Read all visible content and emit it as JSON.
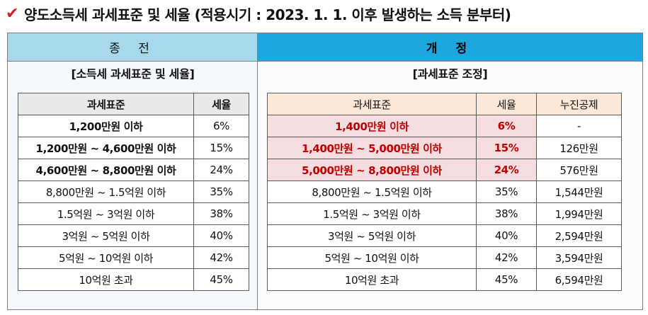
{
  "title": {
    "check_icon": "check-mark-icon",
    "check_color": "#d21f1f",
    "text": "양도소득세 과세표준 및 세율 (적용시기 : 2023. 1. 1. 이후 발생하는 소득 분부터)"
  },
  "left": {
    "header": "종 전",
    "subtitle": "[소득세 과세표준 및 세율]",
    "columns": [
      "과세표준",
      "세율"
    ],
    "rows": [
      {
        "base": "1,200만원 이하",
        "rate": "6%"
      },
      {
        "base": "1,200만원 ~ 4,600만원 이하",
        "rate": "15%"
      },
      {
        "base": "4,600만원 ~ 8,800만원 이하",
        "rate": "24%"
      },
      {
        "base": "8,800만원 ~ 1.5억원 이하",
        "rate": "35%"
      },
      {
        "base": "1.5억원 ~ 3억원 이하",
        "rate": "38%"
      },
      {
        "base": "3억원 ~ 5억원 이하",
        "rate": "40%"
      },
      {
        "base": "5억원 ~ 10억원 이하",
        "rate": "42%"
      },
      {
        "base": "10억원 초과",
        "rate": "45%"
      }
    ]
  },
  "right": {
    "header": "개 정",
    "subtitle": "[과세표준 조정]",
    "columns": [
      "과세표준",
      "세율",
      "누진공제"
    ],
    "rows": [
      {
        "base": "1,400만원 이하",
        "rate": "6%",
        "deduction": "-"
      },
      {
        "base": "1,400만원 ~ 5,000만원 이하",
        "rate": "15%",
        "deduction": "126만원"
      },
      {
        "base": "5,000만원 ~ 8,800만원 이하",
        "rate": "24%",
        "deduction": "576만원"
      },
      {
        "base": "8,800만원 ~ 1.5억원 이하",
        "rate": "35%",
        "deduction": "1,544만원"
      },
      {
        "base": "1.5억원 ~ 3억원 이하",
        "rate": "38%",
        "deduction": "1,994만원"
      },
      {
        "base": "3억원 ~ 5억원 이하",
        "rate": "40%",
        "deduction": "2,594만원"
      },
      {
        "base": "5억원 ~ 10억원 이하",
        "rate": "42%",
        "deduction": "3,594만원"
      },
      {
        "base": "10억원 초과",
        "rate": "45%",
        "deduction": "6,594만원"
      }
    ]
  },
  "colors": {
    "left_header": "#a8d8ec",
    "right_header": "#1ea6de",
    "highlight_fill": "#f6dde0",
    "highlight_text": "#c00000"
  }
}
